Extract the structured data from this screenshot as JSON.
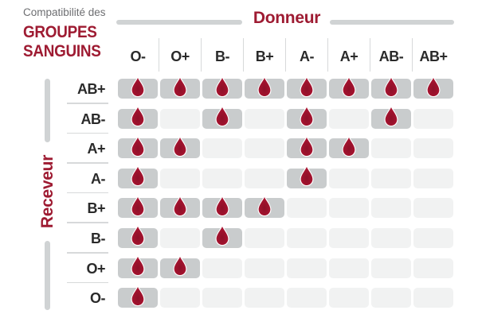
{
  "title": {
    "line1": "Compatibilité des",
    "line2": "GROUPES",
    "line3": "SANGUINS"
  },
  "axes": {
    "donor_label": "Donneur",
    "receiver_label": "Receveur"
  },
  "chart_data": {
    "type": "heatmap",
    "title": "Compatibilité des GROUPES SANGUINS",
    "x_axis_label": "Donneur",
    "y_axis_label": "Receveur",
    "columns": [
      "O-",
      "O+",
      "B-",
      "B+",
      "A-",
      "A+",
      "AB-",
      "AB+"
    ],
    "rows": [
      "AB+",
      "AB-",
      "A+",
      "A-",
      "B+",
      "B-",
      "O+",
      "O-"
    ],
    "matrix": [
      [
        1,
        1,
        1,
        1,
        1,
        1,
        1,
        1
      ],
      [
        1,
        0,
        1,
        0,
        1,
        0,
        1,
        0
      ],
      [
        1,
        1,
        0,
        0,
        1,
        1,
        0,
        0
      ],
      [
        1,
        0,
        0,
        0,
        1,
        0,
        0,
        0
      ],
      [
        1,
        1,
        1,
        1,
        0,
        0,
        0,
        0
      ],
      [
        1,
        0,
        1,
        0,
        0,
        0,
        0,
        0
      ],
      [
        1,
        1,
        0,
        0,
        0,
        0,
        0,
        0
      ],
      [
        1,
        0,
        0,
        0,
        0,
        0,
        0,
        0
      ]
    ],
    "marker": "blood-drop",
    "legend": "drop = donor compatible with receiver",
    "grid_on": false
  },
  "colors": {
    "accent_red": "#9e1b32",
    "drop_red_outer": "#b01734",
    "drop_red_inner": "#8d1028",
    "title_gray": "#6d6e71",
    "axis_bar_gray": "#d0d3d4",
    "separator_gray": "#d7d9da",
    "compatible_cell_bg": "#c9cccd",
    "incompatible_cell_bg": "#f1f2f2",
    "label_text": "#2a2a2a"
  }
}
